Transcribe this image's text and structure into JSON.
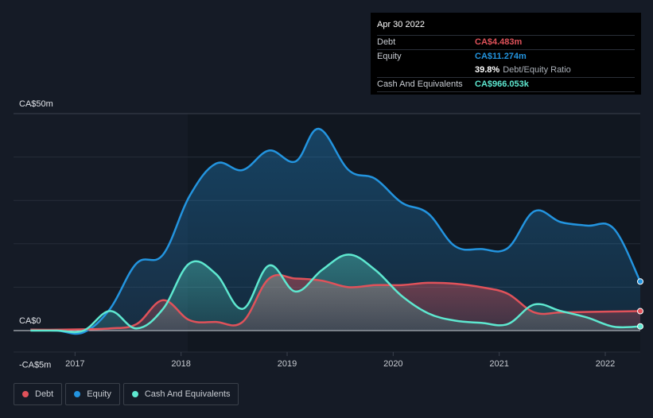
{
  "tooltip": {
    "date": "Apr 30 2022",
    "debt_label": "Debt",
    "debt_value": "CA$4.483m",
    "equity_label": "Equity",
    "equity_value": "CA$11.274m",
    "ratio_value": "39.8%",
    "ratio_label": "Debt/Equity Ratio",
    "cash_label": "Cash And Equivalents",
    "cash_value": "CA$966.053k"
  },
  "legend": {
    "debt": "Debt",
    "equity": "Equity",
    "cash": "Cash And Equivalents"
  },
  "colors": {
    "debt": "#e0525a",
    "equity": "#2394df",
    "cash": "#5ee8d0"
  },
  "chart_data": {
    "type": "line",
    "title": "",
    "xlabel": "",
    "ylabel": "",
    "ylim": [
      -5,
      50
    ],
    "y_tick_labels": [
      "CA$50m",
      "CA$0",
      "-CA$5m"
    ],
    "x_tick_labels": [
      "2017",
      "2018",
      "2019",
      "2020",
      "2021",
      "2022"
    ],
    "x_ticks": [
      2017,
      2018,
      2019,
      2020,
      2021,
      2022
    ],
    "xlim": [
      2016.42,
      2022.33
    ],
    "series": [
      {
        "name": "Equity",
        "x": [
          2016.58,
          2016.83,
          2017.08,
          2017.33,
          2017.58,
          2017.83,
          2018.08,
          2018.33,
          2018.58,
          2018.83,
          2019.08,
          2019.3,
          2019.58,
          2019.83,
          2020.08,
          2020.33,
          2020.58,
          2020.83,
          2021.08,
          2021.33,
          2021.58,
          2021.83,
          2022.08,
          2022.33
        ],
        "values": [
          0.2,
          0.0,
          -0.4,
          5.0,
          15.5,
          17.5,
          31.0,
          38.5,
          37.0,
          41.5,
          39.0,
          46.5,
          37.0,
          35.0,
          29.5,
          27.0,
          19.5,
          18.8,
          19.0,
          27.5,
          25.0,
          24.2,
          23.5,
          11.3
        ]
      },
      {
        "name": "Debt",
        "x": [
          2016.58,
          2016.83,
          2017.08,
          2017.33,
          2017.58,
          2017.83,
          2018.08,
          2018.33,
          2018.58,
          2018.83,
          2019.08,
          2019.33,
          2019.58,
          2019.83,
          2020.08,
          2020.33,
          2020.58,
          2020.83,
          2021.08,
          2021.33,
          2021.58,
          2021.83,
          2022.08,
          2022.33
        ],
        "values": [
          0.2,
          0.2,
          0.3,
          0.5,
          1.5,
          7.0,
          2.4,
          2.0,
          2.0,
          12.0,
          12.0,
          11.5,
          10.0,
          10.5,
          10.5,
          11.0,
          10.8,
          10.0,
          8.5,
          4.2,
          4.2,
          4.3,
          4.4,
          4.48
        ]
      },
      {
        "name": "Cash And Equivalents",
        "x": [
          2016.58,
          2016.83,
          2017.08,
          2017.33,
          2017.58,
          2017.83,
          2018.08,
          2018.33,
          2018.58,
          2018.83,
          2019.08,
          2019.33,
          2019.58,
          2019.83,
          2020.08,
          2020.33,
          2020.58,
          2020.83,
          2021.08,
          2021.33,
          2021.58,
          2021.83,
          2022.08,
          2022.33
        ],
        "values": [
          0.0,
          0.0,
          0.0,
          4.5,
          0.5,
          5.0,
          15.5,
          13.0,
          5.0,
          15.0,
          9.0,
          14.0,
          17.5,
          14.0,
          8.0,
          4.0,
          2.3,
          1.8,
          1.5,
          6.0,
          4.5,
          3.0,
          0.9,
          0.97
        ]
      }
    ]
  }
}
